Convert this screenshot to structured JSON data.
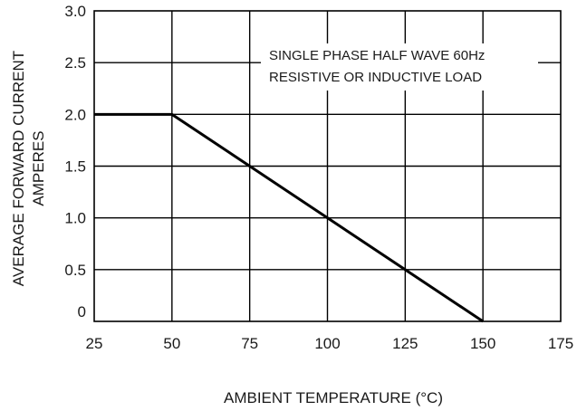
{
  "chart_data": {
    "type": "line",
    "title": "",
    "xlabel": "AMBIENT TEMPERATURE  (°C)",
    "ylabel_line1": "AVERAGE FORWARD CURRENT",
    "ylabel_line2": "AMPERES",
    "xlim": [
      25,
      175
    ],
    "ylim": [
      0,
      3.0
    ],
    "x_ticks": [
      25,
      50,
      75,
      100,
      125,
      150,
      175
    ],
    "x_tick_labels": [
      "25",
      "50",
      "75",
      "100",
      "125",
      "150",
      "175"
    ],
    "y_ticks": [
      0,
      0.5,
      1.0,
      1.5,
      2.0,
      2.5,
      3.0
    ],
    "y_tick_labels": [
      "0",
      "0.5",
      "1.0",
      "1.5",
      "2.0",
      "2.5",
      "3.0"
    ],
    "grid": true,
    "annotation": {
      "line1": "SINGLE PHASE HALF WAVE 60Hz",
      "line2": "RESISTIVE OR INDUCTIVE LOAD"
    },
    "series": [
      {
        "x": [
          25,
          50,
          150
        ],
        "y": [
          2.0,
          2.0,
          0
        ]
      }
    ],
    "colors": {
      "line": "#000000",
      "grid": "#000000"
    }
  }
}
